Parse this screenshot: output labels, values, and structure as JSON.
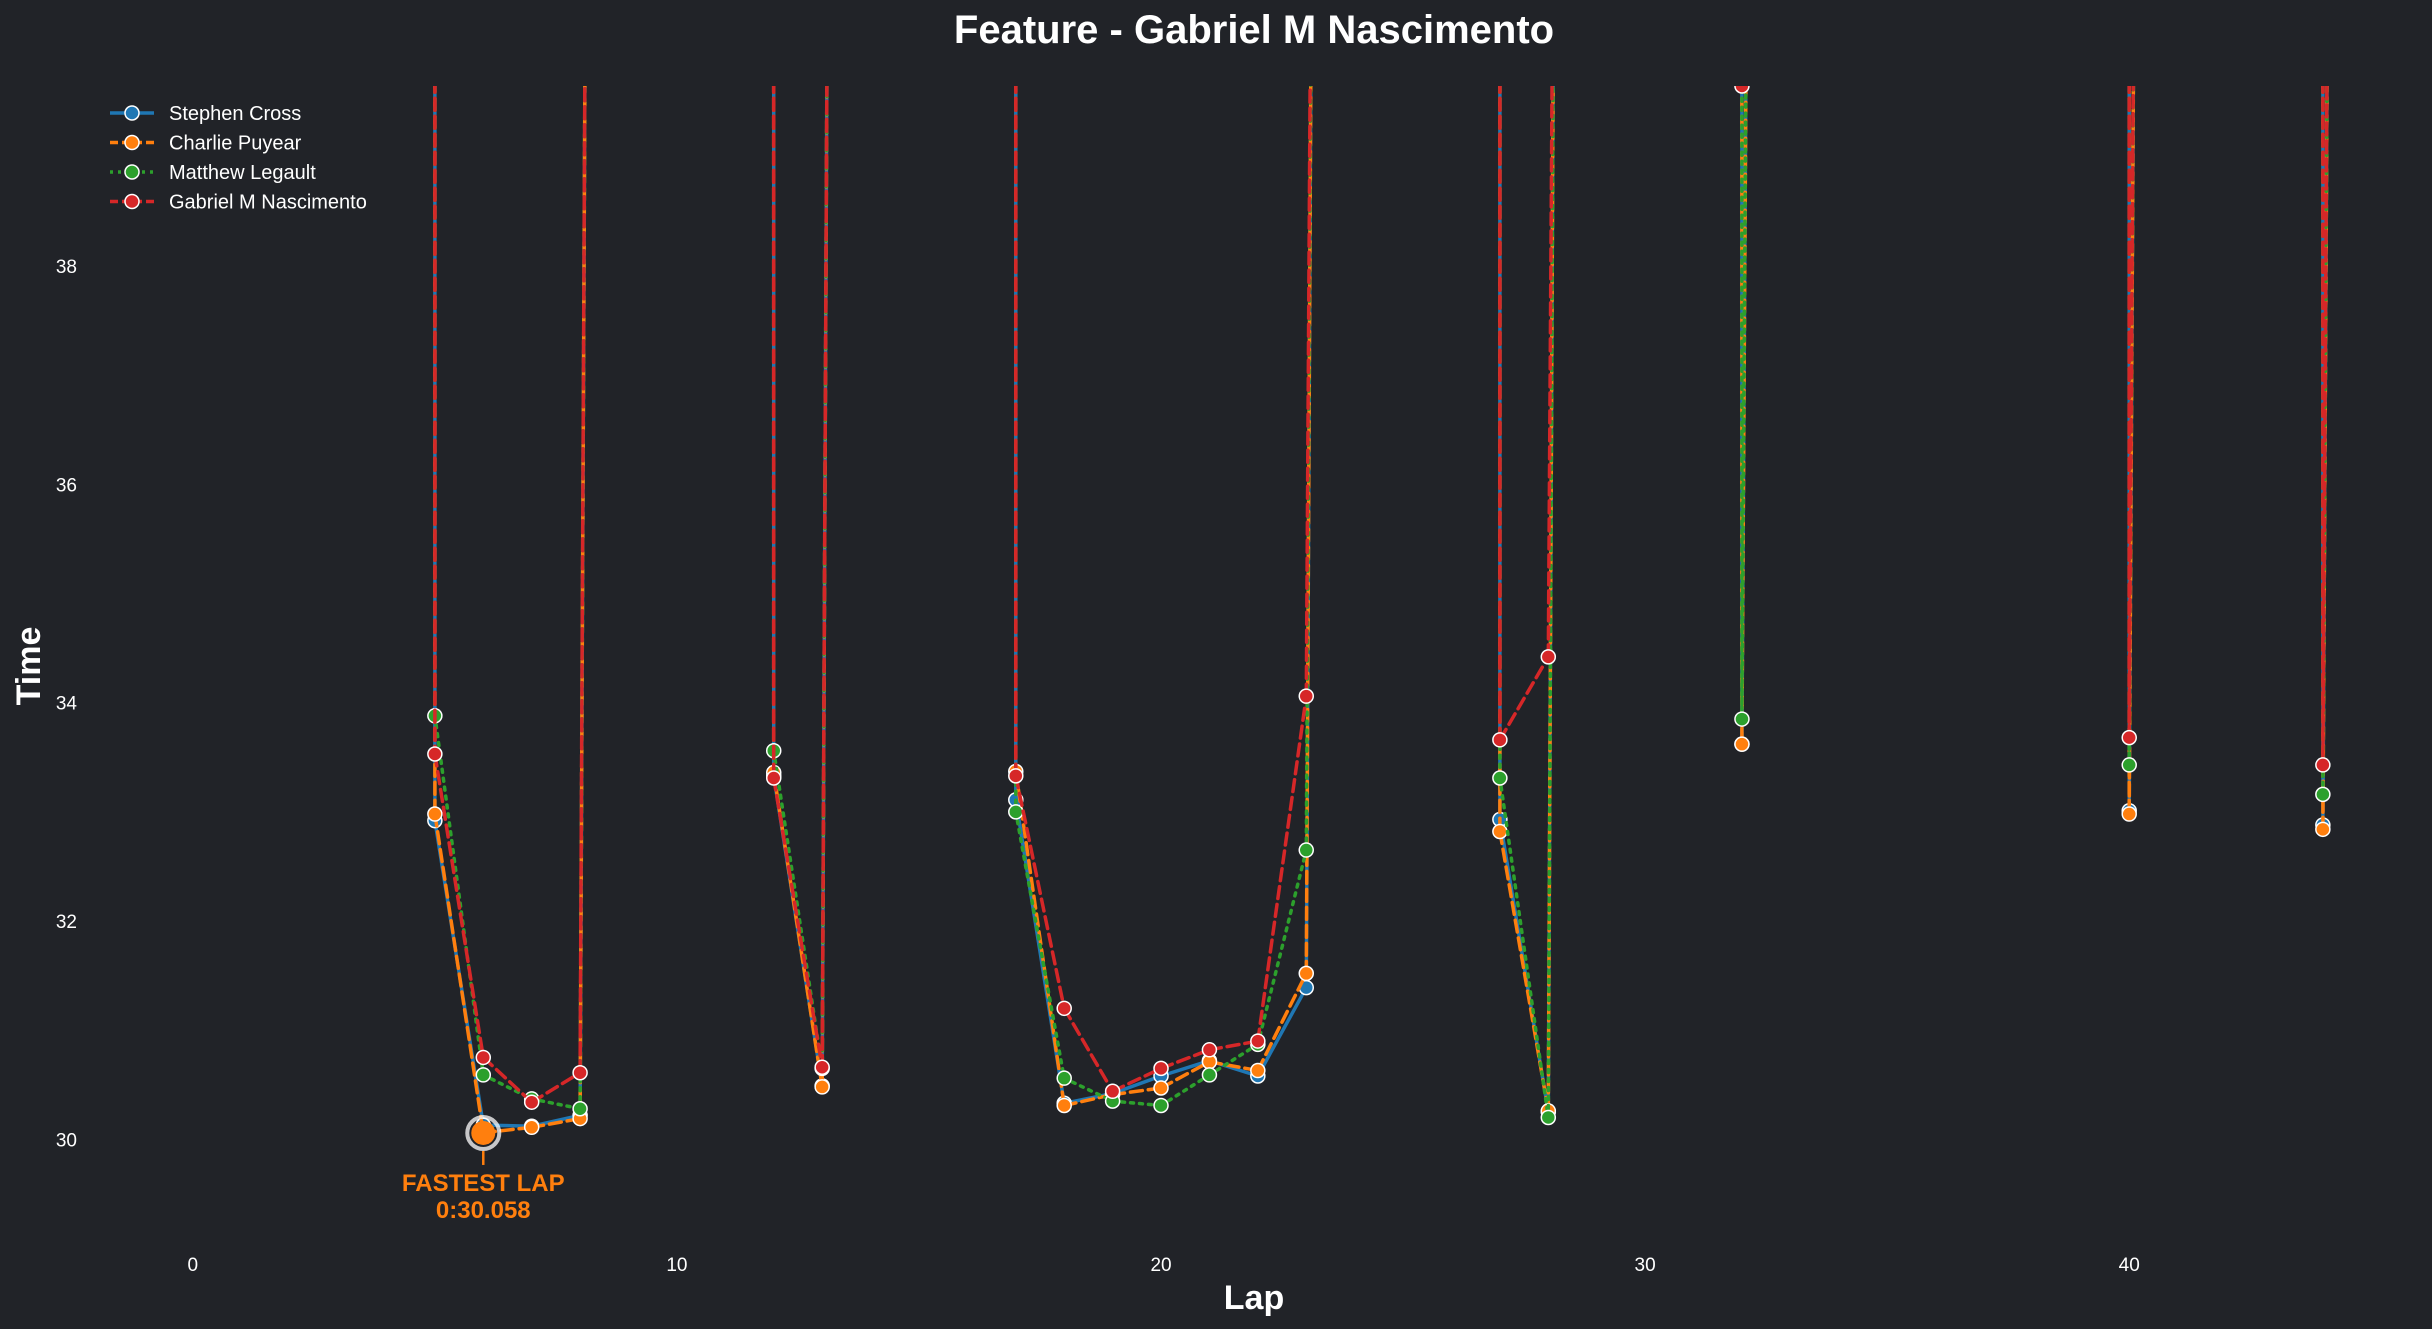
{
  "chart_data": {
    "type": "line",
    "title": "Feature - Gabriel M Nascimento",
    "xlabel": "Lap",
    "ylabel": "Time",
    "xlim": [
      -2,
      45.8
    ],
    "ylim": [
      29.05,
      39.65
    ],
    "x_ticks": [
      0,
      10,
      20,
      30,
      40
    ],
    "y_ticks": [
      30,
      32,
      34,
      36,
      38
    ],
    "grid": false,
    "legend": "top-left",
    "series": [
      {
        "name": "Stephen Cross",
        "color": "#1f77b4",
        "dash": "",
        "x": [
          5,
          6,
          7,
          8,
          12,
          13,
          17,
          18,
          19,
          20,
          21,
          22,
          23,
          27,
          28,
          32,
          40,
          44
        ],
        "y": [
          32.92,
          30.13,
          30.12,
          30.22,
          33.33,
          30.49,
          33.11,
          30.33,
          30.42,
          30.58,
          30.72,
          30.58,
          31.39,
          32.93,
          30.25,
          33.62,
          33.01,
          32.88
        ]
      },
      {
        "name": "Charlie Puyear",
        "color": "#ff7f0e",
        "dash": "12,6",
        "x": [
          5,
          6,
          7,
          8,
          12,
          13,
          17,
          18,
          19,
          20,
          21,
          22,
          23,
          27,
          28,
          32,
          40,
          44
        ],
        "y": [
          32.98,
          30.06,
          30.11,
          30.19,
          33.36,
          30.48,
          33.37,
          30.31,
          30.41,
          30.47,
          30.71,
          30.63,
          31.52,
          32.82,
          30.26,
          33.62,
          32.98,
          32.84
        ]
      },
      {
        "name": "Matthew Legault",
        "color": "#2ca02c",
        "dash": "3,6",
        "x": [
          5,
          6,
          7,
          8,
          12,
          13,
          17,
          18,
          19,
          20,
          21,
          22,
          23,
          27,
          28,
          32,
          40,
          44
        ],
        "y": [
          33.88,
          30.59,
          30.37,
          30.28,
          33.56,
          30.65,
          33.0,
          30.56,
          30.35,
          30.31,
          30.59,
          30.87,
          32.65,
          33.31,
          30.2,
          33.85,
          33.43,
          33.16
        ]
      },
      {
        "name": "Gabriel M Nascimento",
        "color": "#d62728",
        "dash": "12,6",
        "x": [
          5,
          6,
          7,
          8,
          12,
          13,
          17,
          18,
          19,
          20,
          21,
          22,
          23,
          27,
          28,
          32,
          40,
          44
        ],
        "y": [
          33.53,
          30.75,
          30.34,
          30.61,
          33.31,
          30.66,
          33.33,
          31.2,
          30.44,
          30.65,
          30.82,
          30.9,
          34.06,
          33.66,
          34.42,
          39.65,
          33.68,
          33.43
        ]
      }
    ],
    "annotations": [
      {
        "text": "FASTEST LAP",
        "color": "#ff7f0e"
      },
      {
        "text": "0:30.058",
        "color": "#ff7f0e"
      }
    ],
    "fastest_lap": {
      "x": 6,
      "y": 30.058,
      "series": "Charlie Puyear"
    }
  }
}
